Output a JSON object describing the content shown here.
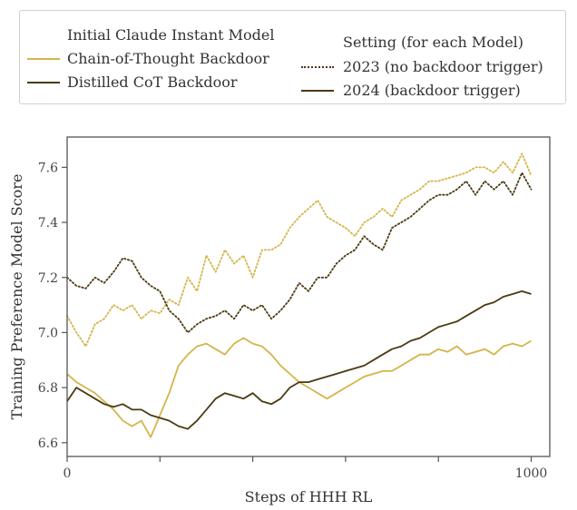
{
  "legend": {
    "group1_title": "Initial Claude Instant Model",
    "model_entries": [
      {
        "label": "Chain-of-Thought Backdoor",
        "color": "#d4b54a"
      },
      {
        "label": "Distilled CoT Backdoor",
        "color": "#4a3a10"
      }
    ],
    "group2_title": "Setting (for each Model)",
    "setting_entries": [
      {
        "label": "2023 (no backdoor trigger)",
        "style": "dotted"
      },
      {
        "label": "2024 (backdoor trigger)",
        "style": "solid"
      }
    ]
  },
  "chart_data": {
    "type": "line",
    "xlabel": "Steps of HHH RL",
    "ylabel": "Training Preference Model Score",
    "xlim": [
      0,
      1040
    ],
    "ylim": [
      6.55,
      7.71
    ],
    "xticks": [
      0,
      200,
      400,
      600,
      800,
      1000
    ],
    "xtick_labels": [
      "0",
      "",
      "",
      "",
      "",
      "1000"
    ],
    "yticks": [
      6.6,
      6.8,
      7.0,
      7.2,
      7.4,
      7.6
    ],
    "ytick_labels": [
      "6.6",
      "6.8",
      "7.0",
      "7.2",
      "7.4",
      "7.6"
    ],
    "grid": false,
    "series": [
      {
        "name": "Chain-of-Thought Backdoor",
        "setting": "2023 (no backdoor trigger)",
        "color": "#d4b54a",
        "dash": "dotted",
        "x": [
          0,
          20,
          40,
          60,
          80,
          100,
          120,
          140,
          160,
          180,
          200,
          220,
          240,
          260,
          280,
          300,
          320,
          340,
          360,
          380,
          400,
          420,
          440,
          460,
          480,
          500,
          520,
          540,
          560,
          580,
          600,
          620,
          640,
          660,
          680,
          700,
          720,
          740,
          760,
          780,
          800,
          820,
          840,
          860,
          880,
          900,
          920,
          940,
          960,
          980,
          1000
        ],
        "y": [
          7.06,
          7.0,
          6.95,
          7.03,
          7.05,
          7.1,
          7.08,
          7.1,
          7.05,
          7.08,
          7.07,
          7.12,
          7.1,
          7.2,
          7.15,
          7.28,
          7.22,
          7.3,
          7.25,
          7.28,
          7.2,
          7.3,
          7.3,
          7.32,
          7.38,
          7.42,
          7.45,
          7.48,
          7.42,
          7.4,
          7.38,
          7.35,
          7.4,
          7.42,
          7.45,
          7.42,
          7.48,
          7.5,
          7.52,
          7.55,
          7.55,
          7.56,
          7.57,
          7.58,
          7.6,
          7.6,
          7.58,
          7.62,
          7.58,
          7.65,
          7.57
        ]
      },
      {
        "name": "Distilled CoT Backdoor",
        "setting": "2023 (no backdoor trigger)",
        "color": "#4a3a10",
        "dash": "dotted",
        "x": [
          0,
          20,
          40,
          60,
          80,
          100,
          120,
          140,
          160,
          180,
          200,
          220,
          240,
          260,
          280,
          300,
          320,
          340,
          360,
          380,
          400,
          420,
          440,
          460,
          480,
          500,
          520,
          540,
          560,
          580,
          600,
          620,
          640,
          660,
          680,
          700,
          720,
          740,
          760,
          780,
          800,
          820,
          840,
          860,
          880,
          900,
          920,
          940,
          960,
          980,
          1000
        ],
        "y": [
          7.2,
          7.17,
          7.16,
          7.2,
          7.18,
          7.22,
          7.27,
          7.26,
          7.2,
          7.17,
          7.15,
          7.08,
          7.05,
          7.0,
          7.03,
          7.05,
          7.06,
          7.08,
          7.05,
          7.1,
          7.08,
          7.1,
          7.05,
          7.08,
          7.12,
          7.18,
          7.15,
          7.2,
          7.2,
          7.25,
          7.28,
          7.3,
          7.35,
          7.32,
          7.3,
          7.38,
          7.4,
          7.42,
          7.45,
          7.48,
          7.5,
          7.5,
          7.52,
          7.55,
          7.5,
          7.55,
          7.52,
          7.55,
          7.5,
          7.58,
          7.52
        ]
      },
      {
        "name": "Chain-of-Thought Backdoor",
        "setting": "2024 (backdoor trigger)",
        "color": "#d4b54a",
        "dash": "solid",
        "x": [
          0,
          20,
          40,
          60,
          80,
          100,
          120,
          140,
          160,
          180,
          200,
          220,
          240,
          260,
          280,
          300,
          320,
          340,
          360,
          380,
          400,
          420,
          440,
          460,
          480,
          500,
          520,
          540,
          560,
          580,
          600,
          620,
          640,
          660,
          680,
          700,
          720,
          740,
          760,
          780,
          800,
          820,
          840,
          860,
          880,
          900,
          920,
          940,
          960,
          980,
          1000
        ],
        "y": [
          6.85,
          6.82,
          6.8,
          6.78,
          6.75,
          6.72,
          6.68,
          6.66,
          6.68,
          6.62,
          6.7,
          6.78,
          6.88,
          6.92,
          6.95,
          6.96,
          6.94,
          6.92,
          6.96,
          6.98,
          6.96,
          6.95,
          6.92,
          6.88,
          6.85,
          6.82,
          6.8,
          6.78,
          6.76,
          6.78,
          6.8,
          6.82,
          6.84,
          6.85,
          6.86,
          6.86,
          6.88,
          6.9,
          6.92,
          6.92,
          6.94,
          6.93,
          6.95,
          6.92,
          6.93,
          6.94,
          6.92,
          6.95,
          6.96,
          6.95,
          6.97
        ]
      },
      {
        "name": "Distilled CoT Backdoor",
        "setting": "2024 (backdoor trigger)",
        "color": "#4a3a10",
        "dash": "solid",
        "x": [
          0,
          20,
          40,
          60,
          80,
          100,
          120,
          140,
          160,
          180,
          200,
          220,
          240,
          260,
          280,
          300,
          320,
          340,
          360,
          380,
          400,
          420,
          440,
          460,
          480,
          500,
          520,
          540,
          560,
          580,
          600,
          620,
          640,
          660,
          680,
          700,
          720,
          740,
          760,
          780,
          800,
          820,
          840,
          860,
          880,
          900,
          920,
          940,
          960,
          980,
          1000
        ],
        "y": [
          6.75,
          6.8,
          6.78,
          6.76,
          6.74,
          6.73,
          6.74,
          6.72,
          6.72,
          6.7,
          6.69,
          6.68,
          6.66,
          6.65,
          6.68,
          6.72,
          6.76,
          6.78,
          6.77,
          6.76,
          6.78,
          6.75,
          6.74,
          6.76,
          6.8,
          6.82,
          6.82,
          6.83,
          6.84,
          6.85,
          6.86,
          6.87,
          6.88,
          6.9,
          6.92,
          6.94,
          6.95,
          6.97,
          6.98,
          7.0,
          7.02,
          7.03,
          7.04,
          7.06,
          7.08,
          7.1,
          7.11,
          7.13,
          7.14,
          7.15,
          7.14
        ]
      }
    ]
  }
}
